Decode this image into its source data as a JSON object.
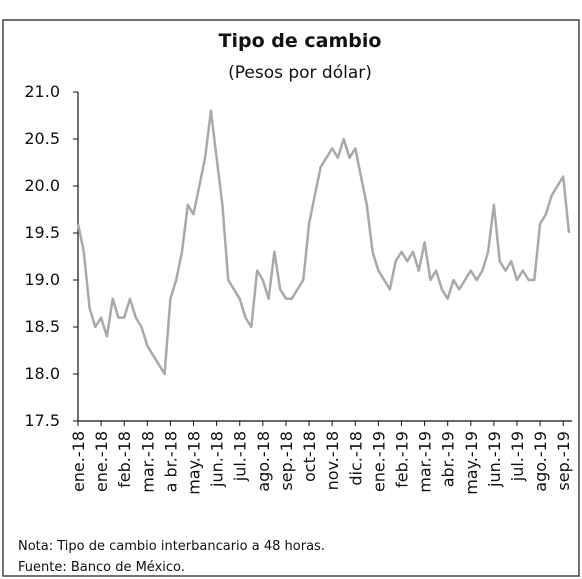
{
  "chart_data": {
    "type": "line",
    "title": "Tipo de cambio",
    "subtitle": "(Pesos por dólar)",
    "categories": [
      "ene.-18",
      null,
      null,
      null,
      "ene.-18",
      null,
      null,
      null,
      "feb.-18",
      null,
      null,
      null,
      "mar.-18",
      null,
      null,
      null,
      "a br.-18",
      null,
      null,
      null,
      "may.-18",
      null,
      null,
      null,
      "jun.-18",
      null,
      null,
      null,
      "jul.-18",
      null,
      null,
      null,
      "ago.-18",
      null,
      null,
      null,
      "sep.-18",
      null,
      null,
      null,
      "oct-18",
      null,
      null,
      null,
      "nov.-18",
      null,
      null,
      null,
      "dic.-18",
      null,
      null,
      null,
      "ene.-19",
      null,
      null,
      null,
      "feb.-19",
      null,
      null,
      null,
      "mar.-19",
      null,
      null,
      null,
      "abr.-19",
      null,
      null,
      null,
      "may.-19",
      null,
      null,
      null,
      "jun.-19",
      null,
      null,
      null,
      "jul.-19",
      null,
      null,
      null,
      "ago.-19",
      null,
      null,
      null,
      "sep.-19",
      null
    ],
    "series": [
      {
        "name": "Tipo de cambio",
        "color": "#a9a9a9",
        "values": [
          19.6,
          19.3,
          18.7,
          18.5,
          18.6,
          18.4,
          18.8,
          18.6,
          18.6,
          18.8,
          18.6,
          18.5,
          18.3,
          18.2,
          18.1,
          18.0,
          18.8,
          19.0,
          19.3,
          19.8,
          19.7,
          20.0,
          20.3,
          20.8,
          20.3,
          19.8,
          19.0,
          18.9,
          18.8,
          18.6,
          18.5,
          19.1,
          19.0,
          18.8,
          19.3,
          18.9,
          18.8,
          18.8,
          18.9,
          19.0,
          19.6,
          19.9,
          20.2,
          20.3,
          20.4,
          20.3,
          20.5,
          20.3,
          20.4,
          20.1,
          19.8,
          19.3,
          19.1,
          19.0,
          18.9,
          19.2,
          19.3,
          19.2,
          19.3,
          19.1,
          19.4,
          19.0,
          19.1,
          18.9,
          18.8,
          19.0,
          18.9,
          19.0,
          19.1,
          19.0,
          19.1,
          19.3,
          19.8,
          19.2,
          19.1,
          19.2,
          19.0,
          19.1,
          19.0,
          19.0,
          19.6,
          19.7,
          19.9,
          20.0,
          20.1,
          19.5
        ]
      }
    ],
    "ylim": [
      17.5,
      21.0
    ],
    "yticks": [
      {
        "value": 21.0,
        "label": "21.0"
      },
      20.5,
      {
        "value": 20.0,
        "label": "20.0"
      },
      19.5,
      {
        "value": 19.0,
        "label": "19.0"
      },
      18.5,
      {
        "value": 18.0,
        "label": "18.0"
      },
      17.5
    ],
    "notes": [
      "Nota: Tipo de cambio interbancario a 48 horas.",
      "Fuente: Banco de México."
    ]
  }
}
